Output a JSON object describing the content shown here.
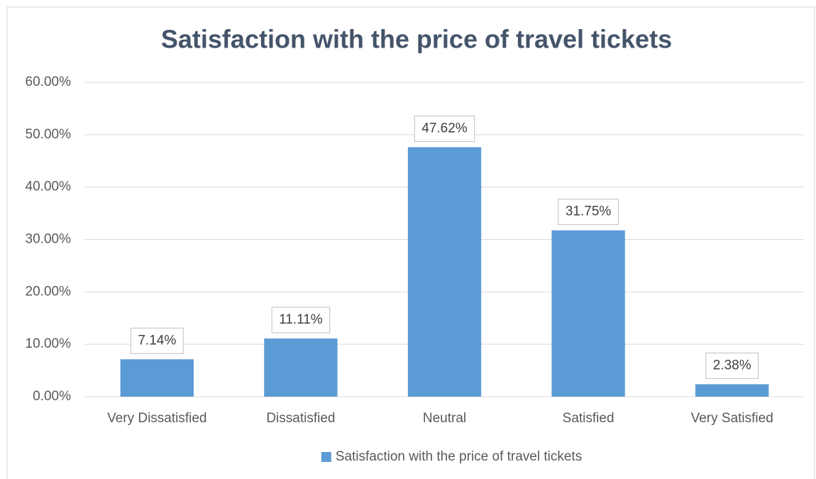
{
  "chart_data": {
    "type": "bar",
    "title": "Satisfaction with the price of travel tickets",
    "categories": [
      "Very Dissatisfied",
      "Dissatisfied",
      "Neutral",
      "Satisfied",
      "Very Satisfied"
    ],
    "series": [
      {
        "name": "Satisfaction with the price of travel tickets",
        "color": "#5b9bd5",
        "values": [
          7.14,
          11.11,
          47.62,
          31.75,
          2.38
        ],
        "value_labels": [
          "7.14%",
          "11.11%",
          "47.62%",
          "31.75%",
          "2.38%"
        ]
      }
    ],
    "ylim": [
      0,
      60
    ],
    "yticks": [
      {
        "value": 0,
        "label": "0.00%"
      },
      {
        "value": 10,
        "label": "10.00%"
      },
      {
        "value": 20,
        "label": "20.00%"
      },
      {
        "value": 30,
        "label": "30.00%"
      },
      {
        "value": 40,
        "label": "40.00%"
      },
      {
        "value": 50,
        "label": "50.00%"
      },
      {
        "value": 60,
        "label": "60.00%"
      }
    ],
    "grid": true,
    "legend": "bottom"
  }
}
